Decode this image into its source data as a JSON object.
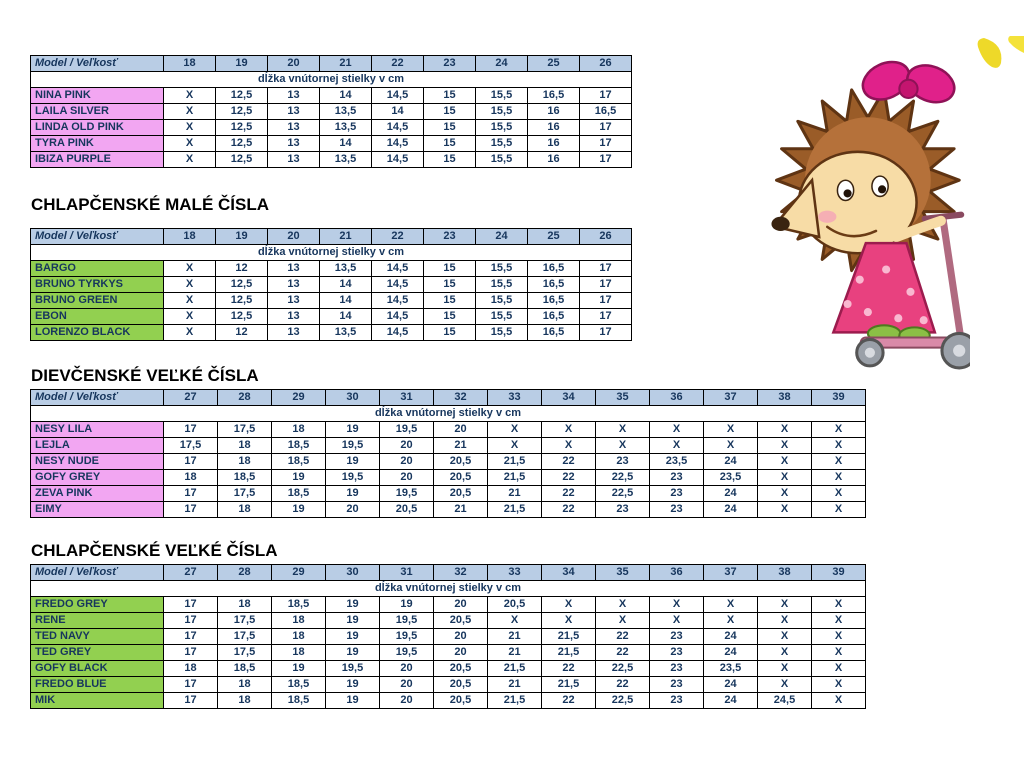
{
  "colors": {
    "header_bg": "#b9cde5",
    "table_text": "#17365d",
    "pink": "#f2a6f2",
    "green": "#92d050",
    "border_color": "#000000",
    "heading_text": "#000000"
  },
  "headings": {
    "boys_small": "CHLAPČENSKÉ MALÉ ČÍSLA",
    "girls_large": "DIEVČENSKÉ VEĽKÉ ČÍSLA",
    "boys_large": "CHLAPČENSKÉ VEĽKÉ ČÍSLA"
  },
  "tables": [
    {
      "name": "girls-small-sizes",
      "corner_label": "Model / Veľkosť",
      "subheader": "dĺžka vnútornej stielky v cm",
      "label_class": "pink",
      "sizes": [
        "18",
        "19",
        "20",
        "21",
        "22",
        "23",
        "24",
        "25",
        "26"
      ],
      "rows": [
        {
          "model": "NINA PINK",
          "values": [
            "X",
            "12,5",
            "13",
            "14",
            "14,5",
            "15",
            "15,5",
            "16,5",
            "17"
          ]
        },
        {
          "model": "LAILA SILVER",
          "values": [
            "X",
            "12,5",
            "13",
            "13,5",
            "14",
            "15",
            "15,5",
            "16",
            "16,5"
          ]
        },
        {
          "model": "LINDA OLD PINK",
          "values": [
            "X",
            "12,5",
            "13",
            "13,5",
            "14,5",
            "15",
            "15,5",
            "16",
            "17"
          ]
        },
        {
          "model": "TYRA PINK",
          "values": [
            "X",
            "12,5",
            "13",
            "14",
            "14,5",
            "15",
            "15,5",
            "16",
            "17"
          ]
        },
        {
          "model": "IBIZA PURPLE",
          "values": [
            "X",
            "12,5",
            "13",
            "13,5",
            "14,5",
            "15",
            "15,5",
            "16",
            "17"
          ]
        }
      ]
    },
    {
      "name": "boys-small-sizes",
      "corner_label": "Model / Veľkosť",
      "subheader": "dĺžka vnútornej stielky v cm",
      "label_class": "green",
      "sizes": [
        "18",
        "19",
        "20",
        "21",
        "22",
        "23",
        "24",
        "25",
        "26"
      ],
      "rows": [
        {
          "model": "BARGO",
          "values": [
            "X",
            "12",
            "13",
            "13,5",
            "14,5",
            "15",
            "15,5",
            "16,5",
            "17"
          ]
        },
        {
          "model": "BRUNO TYRKYS",
          "values": [
            "X",
            "12,5",
            "13",
            "14",
            "14,5",
            "15",
            "15,5",
            "16,5",
            "17"
          ]
        },
        {
          "model": "BRUNO GREEN",
          "values": [
            "X",
            "12,5",
            "13",
            "14",
            "14,5",
            "15",
            "15,5",
            "16,5",
            "17"
          ]
        },
        {
          "model": "EBON",
          "values": [
            "X",
            "12,5",
            "13",
            "14",
            "14,5",
            "15",
            "15,5",
            "16,5",
            "17"
          ]
        },
        {
          "model": "LORENZO BLACK",
          "values": [
            "X",
            "12",
            "13",
            "13,5",
            "14,5",
            "15",
            "15,5",
            "16,5",
            "17"
          ]
        }
      ]
    },
    {
      "name": "girls-large-sizes",
      "corner_label": "Model / Veľkosť",
      "subheader": "dĺžka vnútornej stielky v cm",
      "label_class": "pink",
      "sizes": [
        "27",
        "28",
        "29",
        "30",
        "31",
        "32",
        "33",
        "34",
        "35",
        "36",
        "37",
        "38",
        "39"
      ],
      "rows": [
        {
          "model": "NESY LILA",
          "values": [
            "17",
            "17,5",
            "18",
            "19",
            "19,5",
            "20",
            "X",
            "X",
            "X",
            "X",
            "X",
            "X",
            "X"
          ]
        },
        {
          "model": "LEJLA",
          "values": [
            "17,5",
            "18",
            "18,5",
            "19,5",
            "20",
            "21",
            "X",
            "X",
            "X",
            "X",
            "X",
            "X",
            "X"
          ]
        },
        {
          "model": "NESY NUDE",
          "values": [
            "17",
            "18",
            "18,5",
            "19",
            "20",
            "20,5",
            "21,5",
            "22",
            "23",
            "23,5",
            "24",
            "X",
            "X"
          ]
        },
        {
          "model": "GOFY GREY",
          "values": [
            "18",
            "18,5",
            "19",
            "19,5",
            "20",
            "20,5",
            "21,5",
            "22",
            "22,5",
            "23",
            "23,5",
            "X",
            "X"
          ]
        },
        {
          "model": "ZEVA PINK",
          "values": [
            "17",
            "17,5",
            "18,5",
            "19",
            "19,5",
            "20,5",
            "21",
            "22",
            "22,5",
            "23",
            "24",
            "X",
            "X"
          ]
        },
        {
          "model": "EIMY",
          "values": [
            "17",
            "18",
            "19",
            "20",
            "20,5",
            "21",
            "21,5",
            "22",
            "23",
            "23",
            "24",
            "X",
            "X"
          ]
        }
      ]
    },
    {
      "name": "boys-large-sizes",
      "corner_label": "Model / Veľkosť",
      "subheader": "dĺžka vnútornej stielky v cm",
      "label_class": "green",
      "sizes": [
        "27",
        "28",
        "29",
        "30",
        "31",
        "32",
        "33",
        "34",
        "35",
        "36",
        "37",
        "38",
        "39"
      ],
      "rows": [
        {
          "model": "FREDO GREY",
          "values": [
            "17",
            "18",
            "18,5",
            "19",
            "19",
            "20",
            "20,5",
            "X",
            "X",
            "X",
            "X",
            "X",
            "X"
          ]
        },
        {
          "model": "RENE",
          "values": [
            "17",
            "17,5",
            "18",
            "19",
            "19,5",
            "20,5",
            "X",
            "X",
            "X",
            "X",
            "X",
            "X",
            "X"
          ]
        },
        {
          "model": "TED NAVY",
          "values": [
            "17",
            "17,5",
            "18",
            "19",
            "19,5",
            "20",
            "21",
            "21,5",
            "22",
            "23",
            "24",
            "X",
            "X"
          ]
        },
        {
          "model": "TED GREY",
          "values": [
            "17",
            "17,5",
            "18",
            "19",
            "19,5",
            "20",
            "21",
            "21,5",
            "22",
            "23",
            "24",
            "X",
            "X"
          ]
        },
        {
          "model": "GOFY BLACK",
          "values": [
            "18",
            "18,5",
            "19",
            "19,5",
            "20",
            "20,5",
            "21,5",
            "22",
            "22,5",
            "23",
            "23,5",
            "X",
            "X"
          ]
        },
        {
          "model": "FREDO BLUE",
          "values": [
            "17",
            "18",
            "18,5",
            "19",
            "20",
            "20,5",
            "21",
            "21,5",
            "22",
            "23",
            "24",
            "X",
            "X"
          ]
        },
        {
          "model": "MIK",
          "values": [
            "17",
            "18",
            "18,5",
            "19",
            "20",
            "20,5",
            "21,5",
            "22",
            "22,5",
            "23",
            "24",
            "24,5",
            "X"
          ]
        }
      ]
    }
  ],
  "illustrations": {
    "hedgehog": "hedgehog-girl-riding-scooter",
    "corner_decoration": "yellow-corner-shape"
  }
}
